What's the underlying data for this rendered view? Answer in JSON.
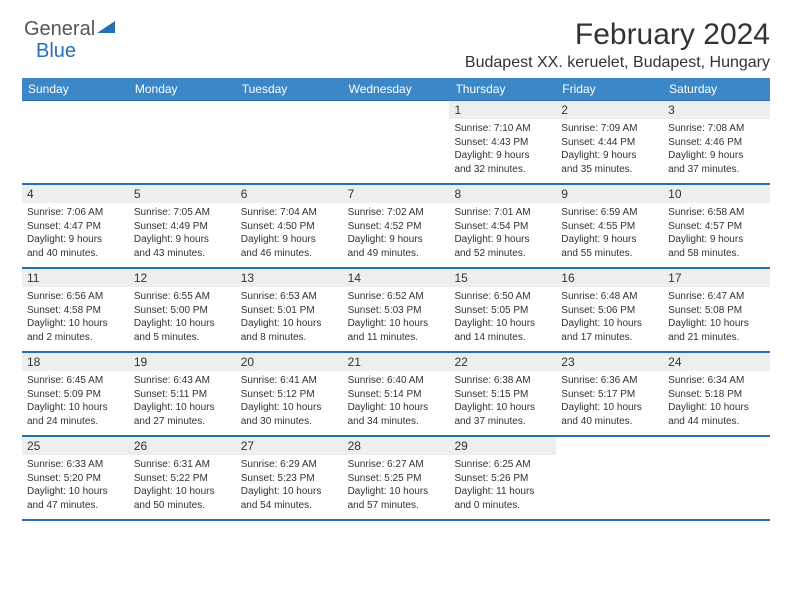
{
  "logo": {
    "text1": "General",
    "text2": "Blue"
  },
  "title": "February 2024",
  "location": "Budapest XX. keruelet, Budapest, Hungary",
  "colors": {
    "header_bg": "#3b87c8",
    "header_text": "#ffffff",
    "border": "#2570b8",
    "daynum_bg": "#eceef0",
    "text": "#333333",
    "logo_gray": "#555555",
    "logo_blue": "#2570b8"
  },
  "weekdays": [
    "Sunday",
    "Monday",
    "Tuesday",
    "Wednesday",
    "Thursday",
    "Friday",
    "Saturday"
  ],
  "weeks": [
    [
      {
        "day": "",
        "sunrise": "",
        "sunset": "",
        "daylight1": "",
        "daylight2": ""
      },
      {
        "day": "",
        "sunrise": "",
        "sunset": "",
        "daylight1": "",
        "daylight2": ""
      },
      {
        "day": "",
        "sunrise": "",
        "sunset": "",
        "daylight1": "",
        "daylight2": ""
      },
      {
        "day": "",
        "sunrise": "",
        "sunset": "",
        "daylight1": "",
        "daylight2": ""
      },
      {
        "day": "1",
        "sunrise": "Sunrise: 7:10 AM",
        "sunset": "Sunset: 4:43 PM",
        "daylight1": "Daylight: 9 hours",
        "daylight2": "and 32 minutes."
      },
      {
        "day": "2",
        "sunrise": "Sunrise: 7:09 AM",
        "sunset": "Sunset: 4:44 PM",
        "daylight1": "Daylight: 9 hours",
        "daylight2": "and 35 minutes."
      },
      {
        "day": "3",
        "sunrise": "Sunrise: 7:08 AM",
        "sunset": "Sunset: 4:46 PM",
        "daylight1": "Daylight: 9 hours",
        "daylight2": "and 37 minutes."
      }
    ],
    [
      {
        "day": "4",
        "sunrise": "Sunrise: 7:06 AM",
        "sunset": "Sunset: 4:47 PM",
        "daylight1": "Daylight: 9 hours",
        "daylight2": "and 40 minutes."
      },
      {
        "day": "5",
        "sunrise": "Sunrise: 7:05 AM",
        "sunset": "Sunset: 4:49 PM",
        "daylight1": "Daylight: 9 hours",
        "daylight2": "and 43 minutes."
      },
      {
        "day": "6",
        "sunrise": "Sunrise: 7:04 AM",
        "sunset": "Sunset: 4:50 PM",
        "daylight1": "Daylight: 9 hours",
        "daylight2": "and 46 minutes."
      },
      {
        "day": "7",
        "sunrise": "Sunrise: 7:02 AM",
        "sunset": "Sunset: 4:52 PM",
        "daylight1": "Daylight: 9 hours",
        "daylight2": "and 49 minutes."
      },
      {
        "day": "8",
        "sunrise": "Sunrise: 7:01 AM",
        "sunset": "Sunset: 4:54 PM",
        "daylight1": "Daylight: 9 hours",
        "daylight2": "and 52 minutes."
      },
      {
        "day": "9",
        "sunrise": "Sunrise: 6:59 AM",
        "sunset": "Sunset: 4:55 PM",
        "daylight1": "Daylight: 9 hours",
        "daylight2": "and 55 minutes."
      },
      {
        "day": "10",
        "sunrise": "Sunrise: 6:58 AM",
        "sunset": "Sunset: 4:57 PM",
        "daylight1": "Daylight: 9 hours",
        "daylight2": "and 58 minutes."
      }
    ],
    [
      {
        "day": "11",
        "sunrise": "Sunrise: 6:56 AM",
        "sunset": "Sunset: 4:58 PM",
        "daylight1": "Daylight: 10 hours",
        "daylight2": "and 2 minutes."
      },
      {
        "day": "12",
        "sunrise": "Sunrise: 6:55 AM",
        "sunset": "Sunset: 5:00 PM",
        "daylight1": "Daylight: 10 hours",
        "daylight2": "and 5 minutes."
      },
      {
        "day": "13",
        "sunrise": "Sunrise: 6:53 AM",
        "sunset": "Sunset: 5:01 PM",
        "daylight1": "Daylight: 10 hours",
        "daylight2": "and 8 minutes."
      },
      {
        "day": "14",
        "sunrise": "Sunrise: 6:52 AM",
        "sunset": "Sunset: 5:03 PM",
        "daylight1": "Daylight: 10 hours",
        "daylight2": "and 11 minutes."
      },
      {
        "day": "15",
        "sunrise": "Sunrise: 6:50 AM",
        "sunset": "Sunset: 5:05 PM",
        "daylight1": "Daylight: 10 hours",
        "daylight2": "and 14 minutes."
      },
      {
        "day": "16",
        "sunrise": "Sunrise: 6:48 AM",
        "sunset": "Sunset: 5:06 PM",
        "daylight1": "Daylight: 10 hours",
        "daylight2": "and 17 minutes."
      },
      {
        "day": "17",
        "sunrise": "Sunrise: 6:47 AM",
        "sunset": "Sunset: 5:08 PM",
        "daylight1": "Daylight: 10 hours",
        "daylight2": "and 21 minutes."
      }
    ],
    [
      {
        "day": "18",
        "sunrise": "Sunrise: 6:45 AM",
        "sunset": "Sunset: 5:09 PM",
        "daylight1": "Daylight: 10 hours",
        "daylight2": "and 24 minutes."
      },
      {
        "day": "19",
        "sunrise": "Sunrise: 6:43 AM",
        "sunset": "Sunset: 5:11 PM",
        "daylight1": "Daylight: 10 hours",
        "daylight2": "and 27 minutes."
      },
      {
        "day": "20",
        "sunrise": "Sunrise: 6:41 AM",
        "sunset": "Sunset: 5:12 PM",
        "daylight1": "Daylight: 10 hours",
        "daylight2": "and 30 minutes."
      },
      {
        "day": "21",
        "sunrise": "Sunrise: 6:40 AM",
        "sunset": "Sunset: 5:14 PM",
        "daylight1": "Daylight: 10 hours",
        "daylight2": "and 34 minutes."
      },
      {
        "day": "22",
        "sunrise": "Sunrise: 6:38 AM",
        "sunset": "Sunset: 5:15 PM",
        "daylight1": "Daylight: 10 hours",
        "daylight2": "and 37 minutes."
      },
      {
        "day": "23",
        "sunrise": "Sunrise: 6:36 AM",
        "sunset": "Sunset: 5:17 PM",
        "daylight1": "Daylight: 10 hours",
        "daylight2": "and 40 minutes."
      },
      {
        "day": "24",
        "sunrise": "Sunrise: 6:34 AM",
        "sunset": "Sunset: 5:18 PM",
        "daylight1": "Daylight: 10 hours",
        "daylight2": "and 44 minutes."
      }
    ],
    [
      {
        "day": "25",
        "sunrise": "Sunrise: 6:33 AM",
        "sunset": "Sunset: 5:20 PM",
        "daylight1": "Daylight: 10 hours",
        "daylight2": "and 47 minutes."
      },
      {
        "day": "26",
        "sunrise": "Sunrise: 6:31 AM",
        "sunset": "Sunset: 5:22 PM",
        "daylight1": "Daylight: 10 hours",
        "daylight2": "and 50 minutes."
      },
      {
        "day": "27",
        "sunrise": "Sunrise: 6:29 AM",
        "sunset": "Sunset: 5:23 PM",
        "daylight1": "Daylight: 10 hours",
        "daylight2": "and 54 minutes."
      },
      {
        "day": "28",
        "sunrise": "Sunrise: 6:27 AM",
        "sunset": "Sunset: 5:25 PM",
        "daylight1": "Daylight: 10 hours",
        "daylight2": "and 57 minutes."
      },
      {
        "day": "29",
        "sunrise": "Sunrise: 6:25 AM",
        "sunset": "Sunset: 5:26 PM",
        "daylight1": "Daylight: 11 hours",
        "daylight2": "and 0 minutes."
      },
      {
        "day": "",
        "sunrise": "",
        "sunset": "",
        "daylight1": "",
        "daylight2": ""
      },
      {
        "day": "",
        "sunrise": "",
        "sunset": "",
        "daylight1": "",
        "daylight2": ""
      }
    ]
  ]
}
